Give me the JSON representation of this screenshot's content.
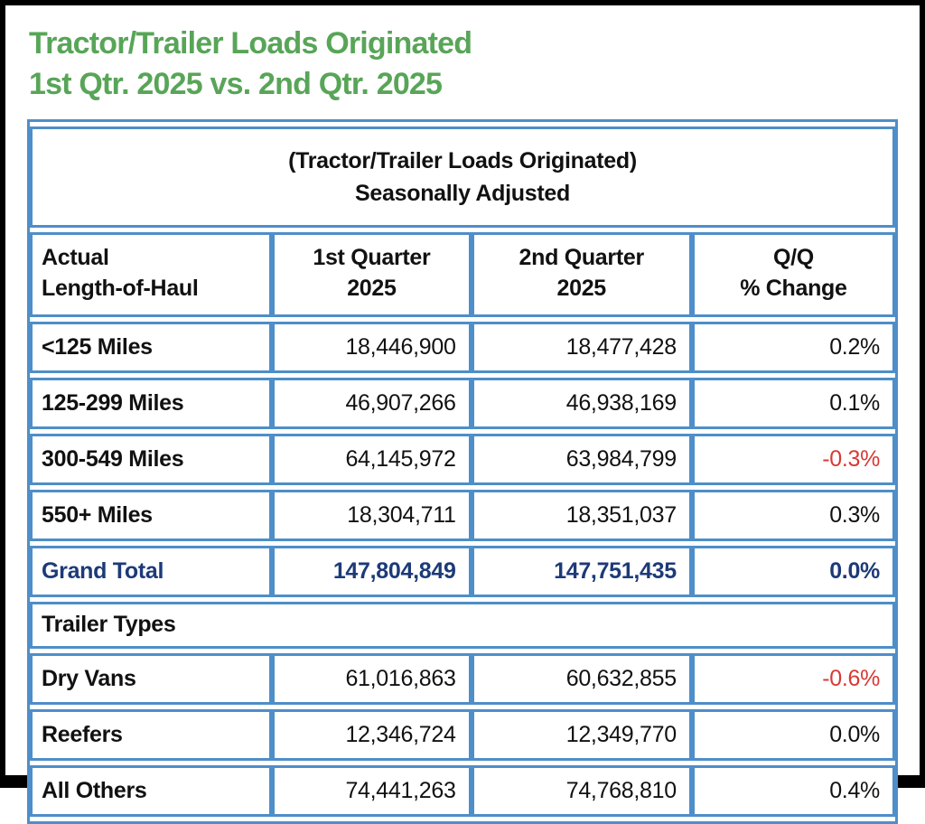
{
  "page": {
    "title_line1": "Tractor/Trailer Loads Originated",
    "title_line2": "1st Qtr. 2025 vs. 2nd Qtr. 2025"
  },
  "table": {
    "title_line1": "(Tractor/Trailer Loads Originated)",
    "title_line2": "Seasonally Adjusted",
    "columns": [
      {
        "line1": "Actual",
        "line2": "Length-of-Haul"
      },
      {
        "line1": "1st Quarter",
        "line2": "2025"
      },
      {
        "line1": "2nd Quarter",
        "line2": "2025"
      },
      {
        "line1": "Q/Q",
        "line2": "% Change"
      }
    ],
    "haul_rows": [
      {
        "label": "<125 Miles",
        "q1": "18,446,900",
        "q2": "18,477,428",
        "change": "0.2%"
      },
      {
        "label": "125-299 Miles",
        "q1": "46,907,266",
        "q2": "46,938,169",
        "change": "0.1%"
      },
      {
        "label": "300-549 Miles",
        "q1": "64,145,972",
        "q2": "63,984,799",
        "change": "-0.3%"
      },
      {
        "label": "550+ Miles",
        "q1": "18,304,711",
        "q2": "18,351,037",
        "change": "0.3%"
      }
    ],
    "grand_total": {
      "label": "Grand Total",
      "q1": "147,804,849",
      "q2": "147,751,435",
      "change": "0.0%"
    },
    "section_header": "Trailer Types",
    "trailer_rows": [
      {
        "label": "Dry Vans",
        "q1": "61,016,863",
        "q2": "60,632,855",
        "change": "-0.6%"
      },
      {
        "label": "Reefers",
        "q1": "12,346,724",
        "q2": "12,349,770",
        "change": "0.0%"
      },
      {
        "label": "All Others",
        "q1": "74,441,263",
        "q2": "74,768,810",
        "change": "0.4%"
      }
    ]
  },
  "colors": {
    "green": "#58a558",
    "blue": "#4e8ec9",
    "navy": "#1d3a78",
    "red": "#d83933",
    "frame": "#000000"
  },
  "chart_data": {
    "type": "table",
    "title": "Tractor/Trailer Loads Originated — 1st Qtr. 2025 vs. 2nd Qtr. 2025",
    "subtitle": "(Tractor/Trailer Loads Originated) Seasonally Adjusted",
    "columns": [
      "Actual Length-of-Haul",
      "1st Quarter 2025",
      "2nd Quarter 2025",
      "Q/Q % Change"
    ],
    "rows": [
      {
        "category": "<125 Miles",
        "q1_2025": 18446900,
        "q2_2025": 18477428,
        "qq_pct_change": 0.2
      },
      {
        "category": "125-299 Miles",
        "q1_2025": 46907266,
        "q2_2025": 46938169,
        "qq_pct_change": 0.1
      },
      {
        "category": "300-549 Miles",
        "q1_2025": 64145972,
        "q2_2025": 63984799,
        "qq_pct_change": -0.3
      },
      {
        "category": "550+ Miles",
        "q1_2025": 18304711,
        "q2_2025": 18351037,
        "qq_pct_change": 0.3
      },
      {
        "category": "Grand Total",
        "q1_2025": 147804849,
        "q2_2025": 147751435,
        "qq_pct_change": 0.0
      },
      {
        "category": "Dry Vans",
        "q1_2025": 61016863,
        "q2_2025": 60632855,
        "qq_pct_change": -0.6
      },
      {
        "category": "Reefers",
        "q1_2025": 12346724,
        "q2_2025": 12349770,
        "qq_pct_change": 0.0
      },
      {
        "category": "All Others",
        "q1_2025": 74441263,
        "q2_2025": 74768810,
        "qq_pct_change": 0.4
      }
    ],
    "sections": {
      "length_of_haul": [
        "<125 Miles",
        "125-299 Miles",
        "300-549 Miles",
        "550+ Miles",
        "Grand Total"
      ],
      "trailer_types": [
        "Dry Vans",
        "Reefers",
        "All Others"
      ]
    }
  }
}
